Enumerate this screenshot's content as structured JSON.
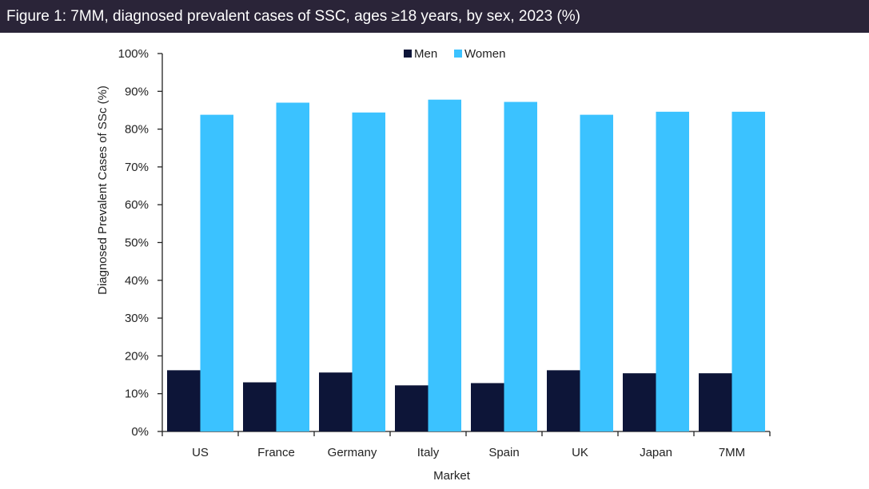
{
  "chart_data": {
    "type": "bar",
    "title": "Figure 1: 7MM, diagnosed prevalent cases of SSC, ages ≥18 years, by sex, 2023 (%)",
    "xlabel": "Market",
    "ylabel": "Diagnosed Prevalent Cases of SSc (%)",
    "categories": [
      "US",
      "France",
      "Germany",
      "Italy",
      "Spain",
      "UK",
      "Japan",
      "7MM"
    ],
    "series": [
      {
        "name": "Men",
        "color": "#0d1538",
        "values": [
          16.2,
          13.0,
          15.6,
          12.2,
          12.8,
          16.2,
          15.4,
          15.4
        ]
      },
      {
        "name": "Women",
        "color": "#3bc2ff",
        "values": [
          83.8,
          87.0,
          84.4,
          87.8,
          87.2,
          83.8,
          84.6,
          84.6
        ]
      }
    ],
    "ylim": [
      0,
      100
    ],
    "yticks": [
      0,
      10,
      20,
      30,
      40,
      50,
      60,
      70,
      80,
      90,
      100
    ],
    "ytick_labels": [
      "0%",
      "10%",
      "20%",
      "30%",
      "40%",
      "50%",
      "60%",
      "70%",
      "80%",
      "90%",
      "100%"
    ],
    "grid": false,
    "legend_position": "top-center"
  }
}
